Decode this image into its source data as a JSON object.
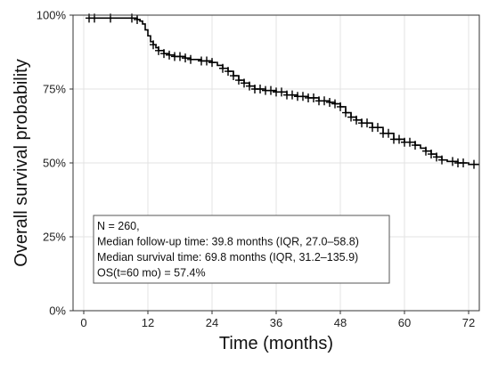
{
  "chart_data": {
    "type": "line",
    "title": "",
    "xlabel": "Time (months)",
    "ylabel": "Overall survival probability",
    "xlim": [
      -2,
      74
    ],
    "ylim": [
      0,
      100
    ],
    "x_ticks": [
      0,
      12,
      24,
      36,
      48,
      60,
      72
    ],
    "x_tick_labels": [
      "0",
      "12",
      "24",
      "36",
      "48",
      "60",
      "72"
    ],
    "y_ticks": [
      0,
      25,
      50,
      75,
      100
    ],
    "y_tick_labels": [
      "0%",
      "25%",
      "50%",
      "75%",
      "100%"
    ],
    "grid": true,
    "series": [
      {
        "x": [
          1,
          9,
          10,
          10.5,
          11,
          11.5,
          12,
          12.5,
          13,
          13.5,
          14,
          15,
          16,
          17,
          19,
          20,
          22,
          24,
          25,
          26,
          27,
          28,
          29,
          30,
          31,
          32,
          34,
          36,
          38,
          40,
          42,
          44,
          46,
          47,
          48,
          49,
          50,
          51,
          52,
          54,
          56,
          58,
          60,
          62,
          63,
          64,
          65,
          66,
          67,
          68,
          70,
          72,
          74
        ],
        "y": [
          99,
          99,
          98.5,
          98,
          97,
          95,
          93,
          91,
          90,
          89,
          88,
          87,
          86.5,
          86,
          85.5,
          85,
          84.5,
          84,
          83,
          82,
          81,
          79.5,
          78,
          77,
          76,
          75,
          74.5,
          74,
          73,
          72.5,
          72,
          71,
          70.5,
          70,
          69,
          67,
          65.5,
          64.5,
          63.5,
          62,
          60,
          58,
          57,
          56,
          55,
          54,
          53,
          52,
          51,
          50.5,
          50,
          49.5,
          49.5
        ],
        "censor_x": [
          1,
          2,
          5,
          9,
          10,
          13,
          14,
          15,
          16,
          17,
          18,
          19,
          20,
          22,
          23,
          24,
          26,
          27,
          28,
          29,
          30,
          31,
          32,
          33,
          34,
          35,
          36,
          37,
          38,
          39,
          40,
          41,
          42,
          43,
          44,
          45,
          46,
          47,
          48,
          49,
          50,
          51,
          52,
          53,
          54,
          55,
          56,
          57,
          58,
          59,
          60,
          61,
          62,
          64,
          65,
          66,
          67,
          69,
          70,
          71,
          73
        ],
        "color": "#000000"
      }
    ],
    "annotation": [
      "N = 260,",
      "Median follow-up time: 39.8 months (IQR, 27.0–58.8)",
      "Median survival time: 69.8 months (IQR, 31.2–135.9)",
      "OS(t=60 mo) = 57.4%"
    ]
  }
}
